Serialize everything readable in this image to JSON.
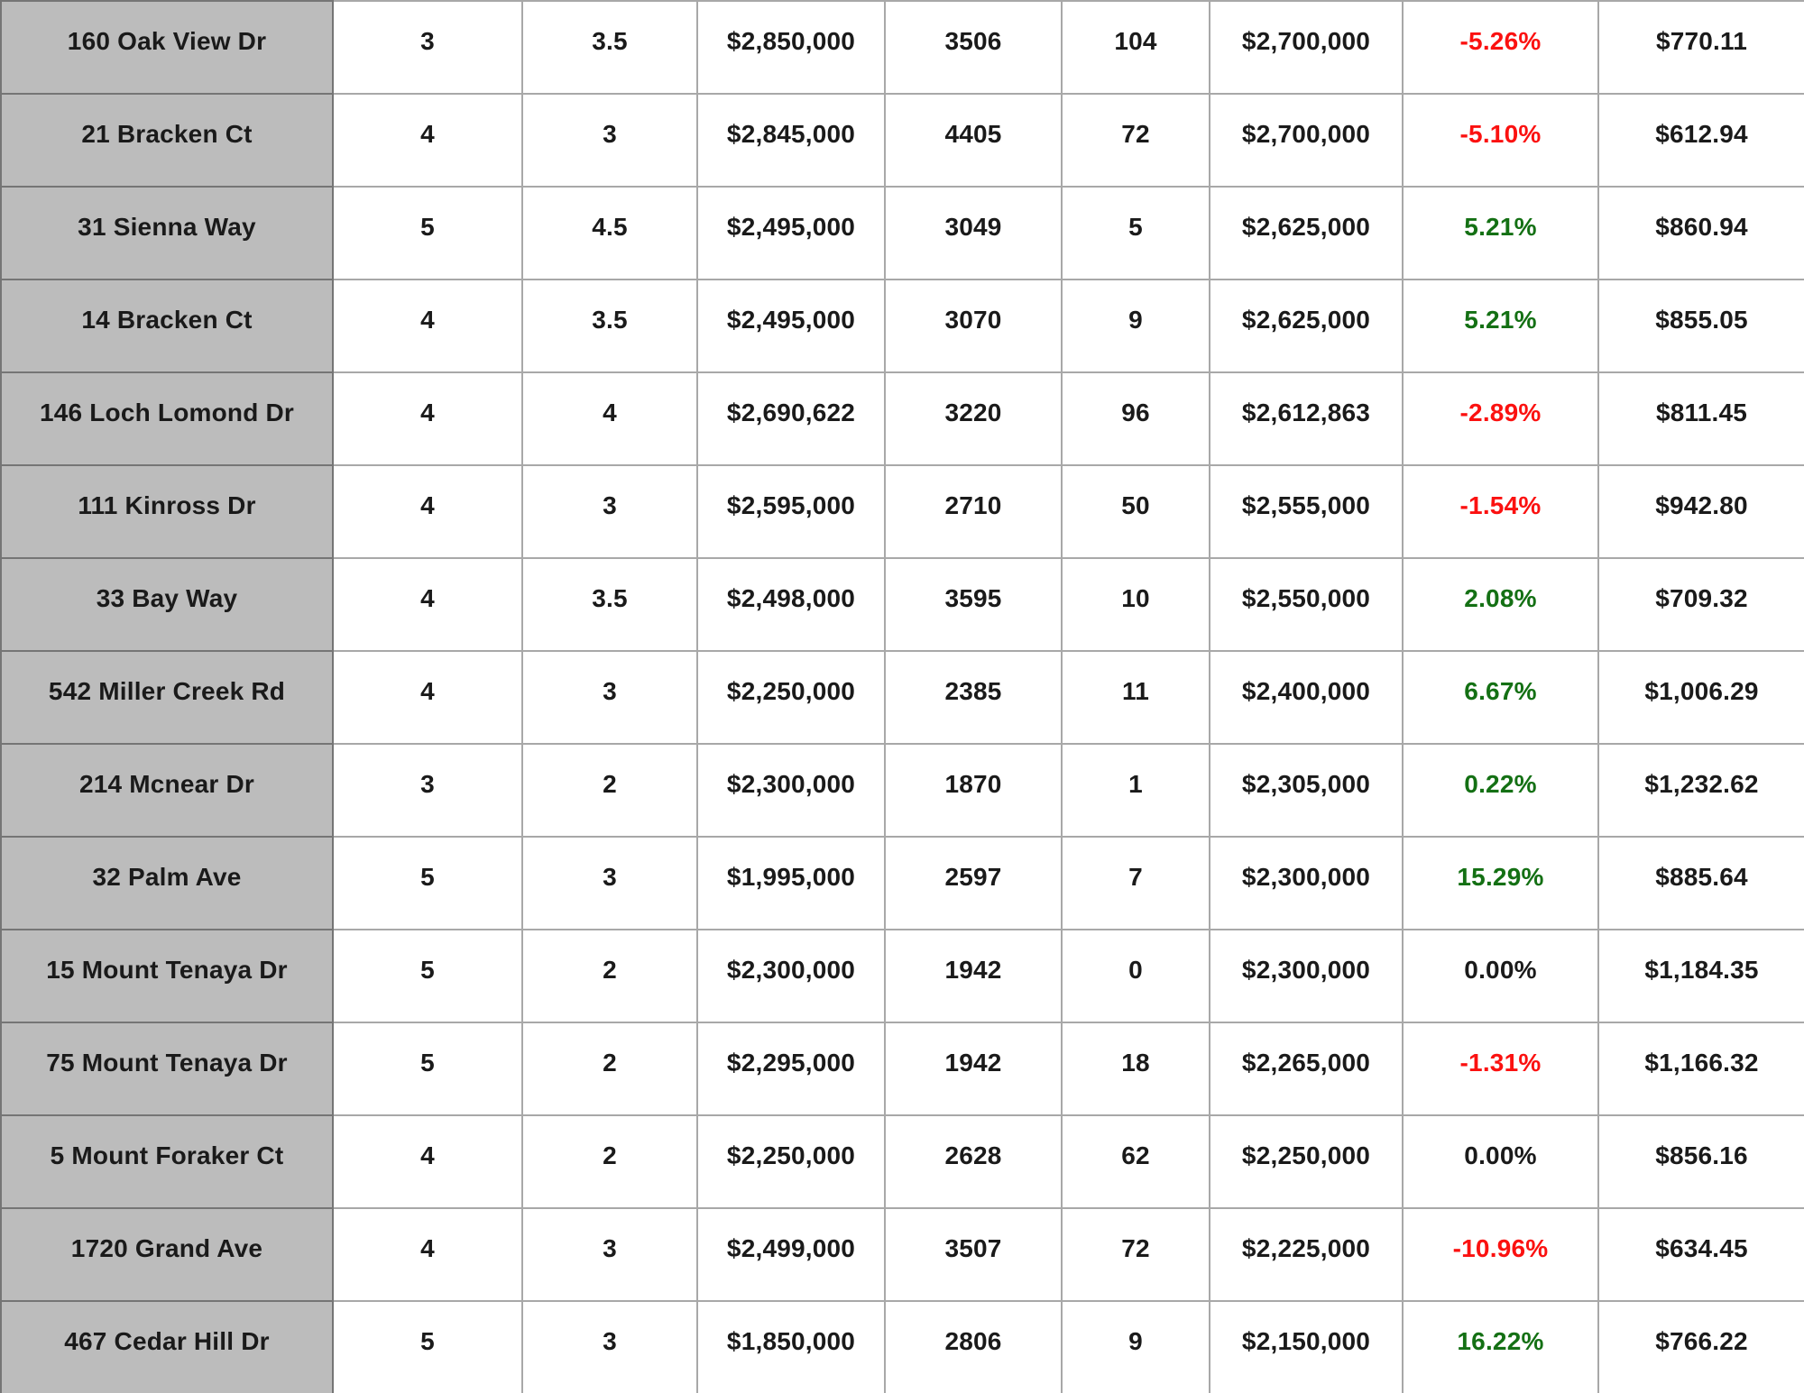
{
  "colors": {
    "positive": "#147014",
    "negative": "#fb1110",
    "text": "#1a1a1a",
    "address_bg": "#bcbcbc",
    "grid_line": "#a8a8a8",
    "grid_line_dark": "#757575"
  },
  "table": {
    "columns": [
      {
        "key": "address"
      },
      {
        "key": "beds"
      },
      {
        "key": "baths"
      },
      {
        "key": "list_price"
      },
      {
        "key": "sqft"
      },
      {
        "key": "days_on_market"
      },
      {
        "key": "sold_price"
      },
      {
        "key": "percent_change"
      },
      {
        "key": "price_per_sqft"
      }
    ],
    "rows": [
      [
        "160 Oak View Dr",
        "3",
        "3.5",
        "$2,850,000",
        "3506",
        "104",
        "$2,700,000",
        "-5.26%",
        "$770.11"
      ],
      [
        "21 Bracken Ct",
        "4",
        "3",
        "$2,845,000",
        "4405",
        "72",
        "$2,700,000",
        "-5.10%",
        "$612.94"
      ],
      [
        "31 Sienna Way",
        "5",
        "4.5",
        "$2,495,000",
        "3049",
        "5",
        "$2,625,000",
        "5.21%",
        "$860.94"
      ],
      [
        "14 Bracken Ct",
        "4",
        "3.5",
        "$2,495,000",
        "3070",
        "9",
        "$2,625,000",
        "5.21%",
        "$855.05"
      ],
      [
        "146 Loch Lomond Dr",
        "4",
        "4",
        "$2,690,622",
        "3220",
        "96",
        "$2,612,863",
        "-2.89%",
        "$811.45"
      ],
      [
        "111 Kinross Dr",
        "4",
        "3",
        "$2,595,000",
        "2710",
        "50",
        "$2,555,000",
        "-1.54%",
        "$942.80"
      ],
      [
        "33 Bay Way",
        "4",
        "3.5",
        "$2,498,000",
        "3595",
        "10",
        "$2,550,000",
        "2.08%",
        "$709.32"
      ],
      [
        "542 Miller Creek Rd",
        "4",
        "3",
        "$2,250,000",
        "2385",
        "11",
        "$2,400,000",
        "6.67%",
        "$1,006.29"
      ],
      [
        "214 Mcnear Dr",
        "3",
        "2",
        "$2,300,000",
        "1870",
        "1",
        "$2,305,000",
        "0.22%",
        "$1,232.62"
      ],
      [
        "32 Palm Ave",
        "5",
        "3",
        "$1,995,000",
        "2597",
        "7",
        "$2,300,000",
        "15.29%",
        "$885.64"
      ],
      [
        "15 Mount Tenaya Dr",
        "5",
        "2",
        "$2,300,000",
        "1942",
        "0",
        "$2,300,000",
        "0.00%",
        "$1,184.35"
      ],
      [
        "75 Mount Tenaya Dr",
        "5",
        "2",
        "$2,295,000",
        "1942",
        "18",
        "$2,265,000",
        "-1.31%",
        "$1,166.32"
      ],
      [
        "5 Mount Foraker Ct",
        "4",
        "2",
        "$2,250,000",
        "2628",
        "62",
        "$2,250,000",
        "0.00%",
        "$856.16"
      ],
      [
        "1720 Grand Ave",
        "4",
        "3",
        "$2,499,000",
        "3507",
        "72",
        "$2,225,000",
        "-10.96%",
        "$634.45"
      ],
      [
        "467 Cedar Hill Dr",
        "5",
        "3",
        "$1,850,000",
        "2806",
        "9",
        "$2,150,000",
        "16.22%",
        "$766.22"
      ]
    ]
  },
  "chart_data": {
    "type": "table",
    "columns": [
      "address",
      "beds",
      "baths",
      "list_price",
      "sqft",
      "days_on_market",
      "sold_price",
      "percent_change",
      "price_per_sqft"
    ],
    "rows": [
      [
        "160 Oak View Dr",
        3,
        3.5,
        2850000,
        3506,
        104,
        2700000,
        -5.26,
        770.11
      ],
      [
        "21 Bracken Ct",
        4,
        3,
        2845000,
        4405,
        72,
        2700000,
        -5.1,
        612.94
      ],
      [
        "31 Sienna Way",
        5,
        4.5,
        2495000,
        3049,
        5,
        2625000,
        5.21,
        860.94
      ],
      [
        "14 Bracken Ct",
        4,
        3.5,
        2495000,
        3070,
        9,
        2625000,
        5.21,
        855.05
      ],
      [
        "146 Loch Lomond Dr",
        4,
        4,
        2690622,
        3220,
        96,
        2612863,
        -2.89,
        811.45
      ],
      [
        "111 Kinross Dr",
        4,
        3,
        2595000,
        2710,
        50,
        2555000,
        -1.54,
        942.8
      ],
      [
        "33 Bay Way",
        4,
        3.5,
        2498000,
        3595,
        10,
        2550000,
        2.08,
        709.32
      ],
      [
        "542 Miller Creek Rd",
        4,
        3,
        2250000,
        2385,
        11,
        2400000,
        6.67,
        1006.29
      ],
      [
        "214 Mcnear Dr",
        3,
        2,
        2300000,
        1870,
        1,
        2305000,
        0.22,
        1232.62
      ],
      [
        "32 Palm Ave",
        5,
        3,
        1995000,
        2597,
        7,
        2300000,
        15.29,
        885.64
      ],
      [
        "15 Mount Tenaya Dr",
        5,
        2,
        2300000,
        1942,
        0,
        2300000,
        0.0,
        1184.35
      ],
      [
        "75 Mount Tenaya Dr",
        5,
        2,
        2295000,
        1942,
        18,
        2265000,
        -1.31,
        1166.32
      ],
      [
        "5 Mount Foraker Ct",
        4,
        2,
        2250000,
        2628,
        62,
        2250000,
        0.0,
        856.16
      ],
      [
        "1720 Grand Ave",
        4,
        3,
        2499000,
        3507,
        72,
        2225000,
        -10.96,
        634.45
      ],
      [
        "467 Cedar Hill Dr",
        5,
        3,
        1850000,
        2806,
        9,
        2150000,
        16.22,
        766.22
      ]
    ]
  }
}
